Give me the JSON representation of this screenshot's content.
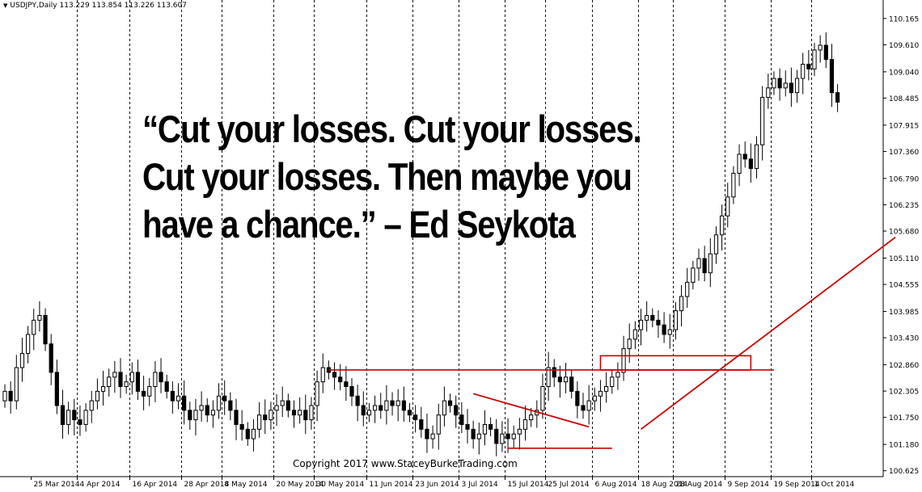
{
  "header": {
    "symbol": "USDJPY,Daily",
    "ohlc": "113.229 113.854 113.226 113.607"
  },
  "quote": {
    "lines": [
      "“Cut your losses. Cut your losses.",
      "Cut your losses. Then maybe you",
      "have a chance.” – Ed Seykota"
    ]
  },
  "copyright": "Copyright 2017 www.StaceyBurkeTrading.com",
  "colors": {
    "candle": "#000000",
    "annotation": "#cc0000",
    "grid": "#000000"
  },
  "chart_data": {
    "type": "candlestick",
    "title": "USDJPY,Daily",
    "ylim": [
      100.5,
      110.35
    ],
    "grid": "vertical-dashed",
    "y_ticks": [
      "110.165",
      "109.610",
      "109.040",
      "108.485",
      "107.915",
      "107.360",
      "106.790",
      "106.235",
      "105.680",
      "105.110",
      "104.555",
      "103.985",
      "103.430",
      "102.860",
      "102.305",
      "101.750",
      "101.180",
      "100.625"
    ],
    "x_ticks": [
      "25 Mar 2014",
      "4 Apr 2014",
      "16 Apr 2014",
      "28 Apr 2014",
      "8 May 2014",
      "20 May 2014",
      "30 May 2014",
      "11 Jun 2014",
      "23 Jun 2014",
      "3 Jul 2014",
      "15 Jul 2014",
      "25 Jul 2014",
      "6 Aug 2014",
      "18 Aug 2014",
      "28 Aug 2014",
      "9 Sep 2014",
      "19 Sep 2014",
      "1 Oct 2014"
    ],
    "closes": [
      102.3,
      102.1,
      102.8,
      103.1,
      103.5,
      103.8,
      103.9,
      103.3,
      102.7,
      102.0,
      101.6,
      101.9,
      101.7,
      101.6,
      101.9,
      102.1,
      102.3,
      102.4,
      102.6,
      102.7,
      102.4,
      102.5,
      102.7,
      102.3,
      102.2,
      102.4,
      102.7,
      102.5,
      102.3,
      102.1,
      102.2,
      101.9,
      101.7,
      101.9,
      102.0,
      101.8,
      101.9,
      102.2,
      102.1,
      101.9,
      101.6,
      101.5,
      101.3,
      101.5,
      101.8,
      101.7,
      101.9,
      102.0,
      102.1,
      101.9,
      101.8,
      101.9,
      101.7,
      102.0,
      102.5,
      102.8,
      102.7,
      102.6,
      102.5,
      102.4,
      102.2,
      102.0,
      101.8,
      101.9,
      102.0,
      101.9,
      102.1,
      102.0,
      102.1,
      101.9,
      101.8,
      101.7,
      101.5,
      101.3,
      101.4,
      101.8,
      102.1,
      102.0,
      101.8,
      101.6,
      101.5,
      101.3,
      101.4,
      101.6,
      101.5,
      101.2,
      101.4,
      101.3,
      101.4,
      101.5,
      101.7,
      101.8,
      101.9,
      102.4,
      102.8,
      102.6,
      102.5,
      102.6,
      102.3,
      102.0,
      101.9,
      102.1,
      102.2,
      102.3,
      102.4,
      102.6,
      102.7,
      103.2,
      103.4,
      103.6,
      103.8,
      103.9,
      103.8,
      103.7,
      103.5,
      103.6,
      104.0,
      104.3,
      104.6,
      104.9,
      105.1,
      104.8,
      105.2,
      105.6,
      106.0,
      106.4,
      106.9,
      107.3,
      107.2,
      107.0,
      107.5,
      108.5,
      108.7,
      108.9,
      108.7,
      108.8,
      108.6,
      108.9,
      109.2,
      109.1,
      109.5,
      109.6,
      109.3,
      108.6,
      108.4
    ],
    "annotations": [
      {
        "type": "hline",
        "label": "resistance 102.75",
        "y": 102.75,
        "from": 56,
        "to": 133
      },
      {
        "type": "box",
        "label": "breakout box",
        "from": 103,
        "to": 129,
        "y_top": 103.05,
        "y_bottom": 102.75
      },
      {
        "type": "trendline",
        "label": "descending trendline",
        "from": [
          81,
          102.25
        ],
        "to": [
          101,
          101.55
        ]
      },
      {
        "type": "hline",
        "label": "support 101.1",
        "y": 101.1,
        "from": 87,
        "to": 105
      },
      {
        "type": "trendline",
        "label": "rising trendline",
        "from": [
          110,
          101.5
        ],
        "to": [
          154,
          105.55
        ]
      }
    ]
  }
}
